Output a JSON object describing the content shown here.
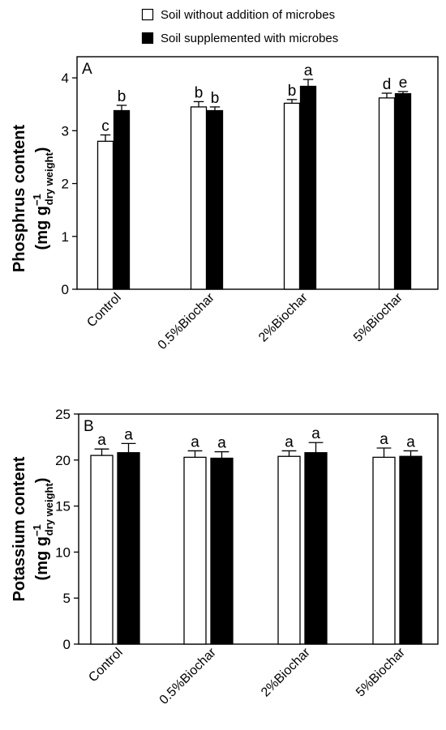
{
  "legend": {
    "items": [
      {
        "label": "Soil without addition of microbes",
        "fill": "#ffffff"
      },
      {
        "label": "Soil supplemented with microbes",
        "fill": "#000000"
      }
    ]
  },
  "chart_data": [
    {
      "type": "bar",
      "panel_label": "A",
      "categories": [
        "Control",
        "0.5%Biochar",
        "2%Biochar",
        "5%Biochar"
      ],
      "ylabel_line1": "Phosphrus content",
      "ylabel_line2_parts": {
        "open": "(mg g",
        "sup": "−1",
        "sub": "dry weight",
        "close": ")"
      },
      "ylim": [
        0,
        4.4
      ],
      "yticks": [
        0,
        1,
        2,
        3,
        4
      ],
      "series": [
        {
          "name": "Soil without addition of microbes",
          "color": "#ffffff",
          "values": [
            2.8,
            3.45,
            3.52,
            3.62
          ],
          "errors": [
            0.12,
            0.1,
            0.07,
            0.09
          ],
          "letters": [
            "c",
            "b",
            "b",
            "d"
          ]
        },
        {
          "name": "Soil supplemented with microbes",
          "color": "#000000",
          "values": [
            3.38,
            3.38,
            3.84,
            3.7
          ],
          "errors": [
            0.1,
            0.07,
            0.13,
            0.04
          ],
          "letters": [
            "b",
            "b",
            "a",
            "e"
          ]
        }
      ]
    },
    {
      "type": "bar",
      "panel_label": "B",
      "categories": [
        "Control",
        "0.5%Biochar",
        "2%Biochar",
        "5%Biochar"
      ],
      "ylabel_line1": "Potassium content",
      "ylabel_line2_parts": {
        "open": "(mg g",
        "sup": "−1",
        "sub": "dry weight",
        "close": ")"
      },
      "ylim": [
        0,
        25
      ],
      "yticks": [
        0,
        5,
        10,
        15,
        20,
        25
      ],
      "series": [
        {
          "name": "Soil without addition of microbes",
          "color": "#ffffff",
          "values": [
            20.5,
            20.3,
            20.4,
            20.3
          ],
          "errors": [
            0.7,
            0.7,
            0.6,
            1.0
          ],
          "letters": [
            "a",
            "a",
            "a",
            "a"
          ]
        },
        {
          "name": "Soil supplemented with microbes",
          "color": "#000000",
          "values": [
            20.8,
            20.2,
            20.8,
            20.4
          ],
          "errors": [
            1.0,
            0.7,
            1.1,
            0.6
          ],
          "letters": [
            "a",
            "a",
            "a",
            "a"
          ]
        }
      ]
    }
  ]
}
